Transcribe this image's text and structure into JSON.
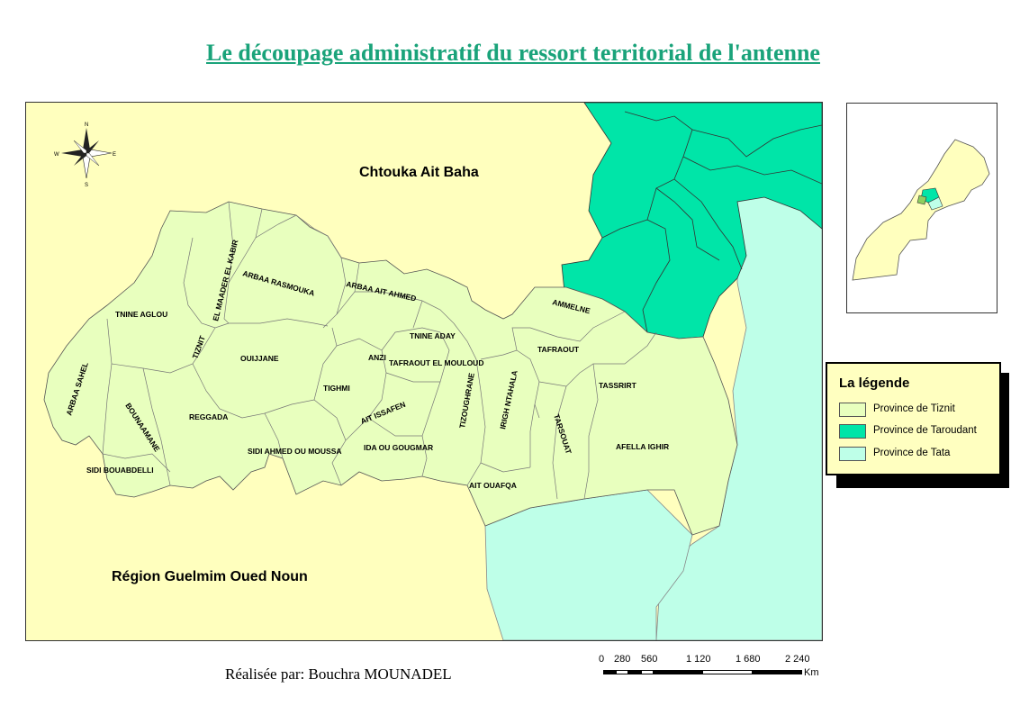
{
  "title": "Le découpage administratif du ressort territorial de l'antenne",
  "regions": {
    "north": "Chtouka Ait Baha",
    "south": "Région Guelmim Oued Noun"
  },
  "communes": [
    "TNINE AGLOU",
    "EL MAADER EL KABIR",
    "ARBAA RASMOUKA",
    "ARBAA AIT AHMED",
    "TIZNIT",
    "OUIJJANE",
    "ARBAA SAHEL",
    "BOUNAAMANE",
    "REGGADA",
    "SIDI BOUABDELLI",
    "TIGHMI",
    "ANZI",
    "TNINE ADAY",
    "TAFRAOUT EL MOULOUD",
    "AIT ISSAFEN",
    "SIDI AHMED OU MOUSSA",
    "IDA OU GOUGMAR",
    "TIZOUGHRANE",
    "IRIGH NTAHALA",
    "AMMELNE",
    "TAFRAOUT",
    "TASSRIRT",
    "TARSOUAT",
    "AFELLA IGHIR",
    "AIT OUAFQA"
  ],
  "compass": {
    "n": "N",
    "s": "S",
    "e": "E",
    "w": "W"
  },
  "legend": {
    "title": "La légende",
    "items": [
      {
        "label": "Province de Tiznit",
        "color": "#e8ffbe"
      },
      {
        "label": "Province de Taroudant",
        "color": "#00e5a8"
      },
      {
        "label": "Province de Tata",
        "color": "#beffe8"
      }
    ]
  },
  "colors": {
    "background_region": "#ffffbe",
    "title": "#1aa37a"
  },
  "author": "Réalisée par: Bouchra MOUNADEL",
  "scale": {
    "ticks": [
      "0",
      "280",
      "560",
      "1 120",
      "1 680",
      "2 240"
    ],
    "unit": "Km"
  }
}
